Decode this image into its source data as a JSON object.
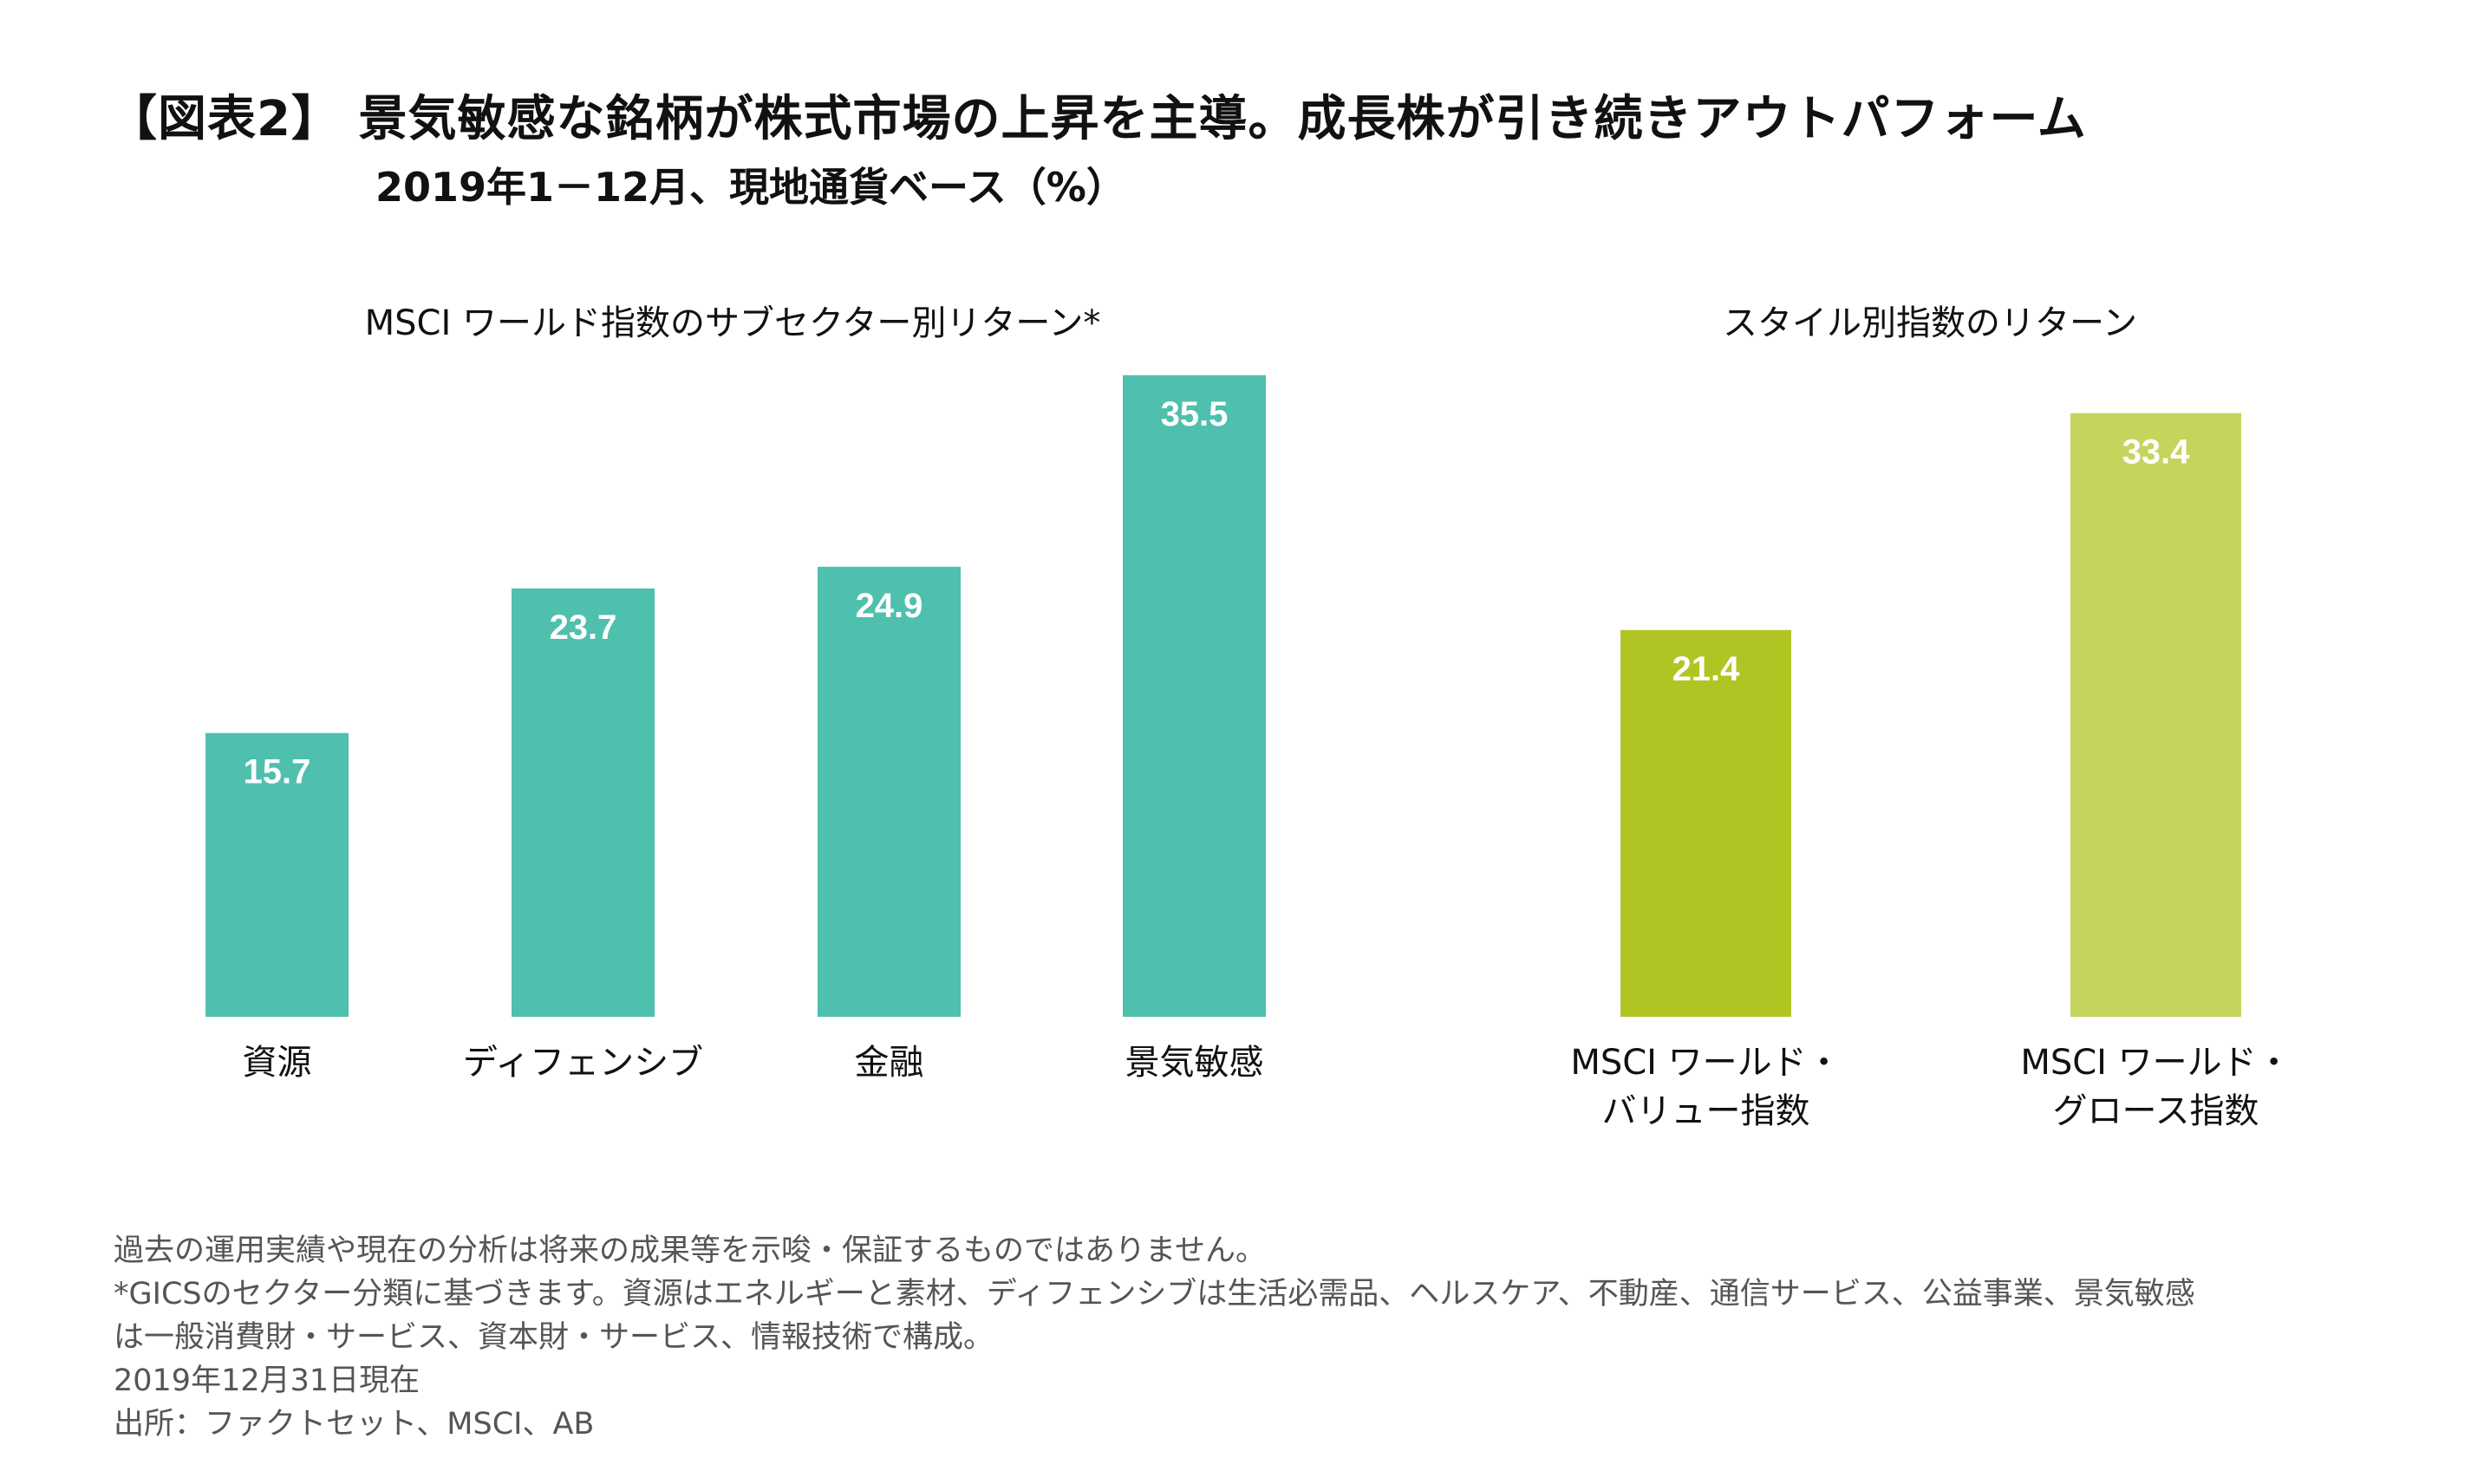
{
  "header": {
    "title": "【図表2】 景気敏感な銘柄が株式市場の上昇を主導。成長株が引き続きアウトパフォーム",
    "subtitle": "2019年1－12月、現地通貨ベース（%）"
  },
  "chart_data": [
    {
      "type": "bar",
      "title": "MSCI ワールド指数のサブセクター別リターン*",
      "categories": [
        [
          "資源"
        ],
        [
          "ディフェンシブ"
        ],
        [
          "金融"
        ],
        [
          "景気敏感"
        ]
      ],
      "values": [
        15.7,
        23.7,
        24.9,
        35.5
      ],
      "value_labels": [
        "15.7",
        "23.7",
        "24.9",
        "35.5"
      ],
      "colors": [
        "#4FBFAE",
        "#4FBFAE",
        "#4FBFAE",
        "#4FBFAE"
      ],
      "ylim": [
        0,
        35.5
      ],
      "grid": false,
      "axes_visible": false
    },
    {
      "type": "bar",
      "title": "スタイル別指数のリターン",
      "categories": [
        [
          "MSCI ワールド・",
          "バリュー指数"
        ],
        [
          "MSCI ワールド・",
          "グロース指数"
        ]
      ],
      "values": [
        21.4,
        33.4
      ],
      "value_labels": [
        "21.4",
        "33.4"
      ],
      "colors": [
        "#B0C523",
        "#C5D45C"
      ],
      "ylim": [
        0,
        35.5
      ],
      "grid": false,
      "axes_visible": false
    }
  ],
  "footnotes": [
    "過去の運用実績や現在の分析は将来の成果等を示唆・保証するものではありません。",
    "*GICSのセクター分類に基づきます。資源はエネルギーと素材、ディフェンシブは生活必需品、ヘルスケア、不動産、通信サービス、公益事業、景気敏感",
    "は一般消費財・サービス、資本財・サービス、情報技術で構成。",
    "2019年12月31日現在",
    "出所：ファクトセット、MSCI、AB"
  ]
}
